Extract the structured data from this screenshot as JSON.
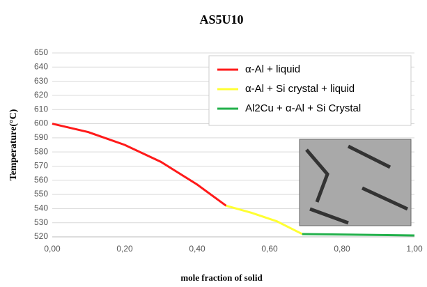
{
  "chart_data": {
    "type": "line",
    "title": "AS5U10",
    "x_label": "mole fraction of solid",
    "y_label": "Temperature(°C)",
    "series": [
      {
        "name": "α-Al + liquid",
        "color": "#ff1a1a",
        "x": [
          0,
          0.1,
          0.2,
          0.3,
          0.4,
          0.48
        ],
        "values": [
          600,
          594,
          585,
          573,
          557,
          542
        ]
      },
      {
        "name": "α-Al + Si crystal + liquid",
        "color": "#ffff33",
        "x": [
          0.48,
          0.55,
          0.62,
          0.69
        ],
        "values": [
          542,
          537,
          531,
          522
        ]
      },
      {
        "name": "Al2Cu + α-Al + Si Crystal",
        "color": "#22b04b",
        "x": [
          0.69,
          1.0
        ],
        "values": [
          522,
          521
        ]
      }
    ],
    "xlim": [
      0,
      1
    ],
    "ylim": [
      520,
      650
    ],
    "xticks": [
      {
        "value": 0,
        "label": "0,00"
      },
      {
        "value": 0.2,
        "label": "0,20"
      },
      {
        "value": 0.4,
        "label": "0,40"
      },
      {
        "value": 0.6,
        "label": "0,60"
      },
      {
        "value": 0.8,
        "label": "0,80"
      },
      {
        "value": 1,
        "label": "1,00"
      }
    ],
    "yticks": [
      520,
      530,
      540,
      550,
      560,
      570,
      580,
      590,
      600,
      610,
      620,
      630,
      640,
      650
    ],
    "grid": true,
    "legend": "top-right"
  }
}
